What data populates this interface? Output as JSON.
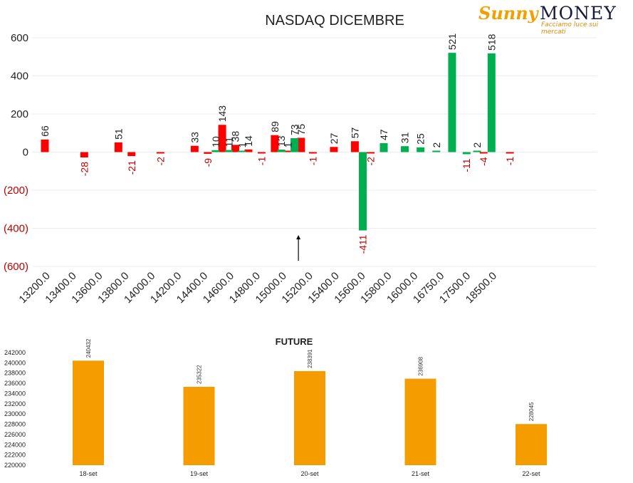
{
  "logo": {
    "brand_part1": "Sunny",
    "brand_part2": "MONEY",
    "tagline": "Facciamo luce sui mercati"
  },
  "colors": {
    "positive": "#00b050",
    "negative": "#ff0000",
    "negative_text": "#c00000",
    "future_bar": "#f59c00"
  },
  "chart_data": [
    {
      "type": "bar",
      "title": "NASDAQ DICEMBRE",
      "y_ticks": [
        "600",
        "400",
        "200",
        "0",
        "(200)",
        "(400)",
        "(600)"
      ],
      "ylim": [
        -600,
        600
      ],
      "categories": [
        "13200.0",
        "13400.0",
        "13600.0",
        "13800.0",
        "14000.0",
        "14200.0",
        "14400.0",
        "14600.0",
        "14800.0",
        "15000.0",
        "15200.0",
        "15400.0",
        "15600.0",
        "15800.0",
        "16000.0",
        "16750.0",
        "17500.0",
        "18500.0"
      ],
      "series": [
        {
          "color": "red",
          "points": [
            {
              "x": 0.0,
              "y": 66
            },
            {
              "x": 1.5,
              "y": -28
            },
            {
              "x": 2.8,
              "y": 51
            },
            {
              "x": 3.3,
              "y": -21
            },
            {
              "x": 4.4,
              "y": -2
            },
            {
              "x": 5.7,
              "y": 33
            },
            {
              "x": 6.2,
              "y": -9
            },
            {
              "x": 6.75,
              "y": 143
            },
            {
              "x": 7.25,
              "y": 38
            },
            {
              "x": 7.75,
              "y": 14
            },
            {
              "x": 8.25,
              "y": -1
            },
            {
              "x": 8.75,
              "y": 89
            },
            {
              "x": 9.25,
              "y": 1
            },
            {
              "x": 9.75,
              "y": 75
            },
            {
              "x": 10.2,
              "y": -1
            },
            {
              "x": 11.0,
              "y": 27
            },
            {
              "x": 11.8,
              "y": 57
            },
            {
              "x": 12.4,
              "y": -2
            },
            {
              "x": 16.7,
              "y": -4
            },
            {
              "x": 17.7,
              "y": -1
            }
          ]
        },
        {
          "color": "green",
          "points": [
            {
              "x": 6.5,
              "y": 10
            },
            {
              "x": 7.0,
              "y": 11
            },
            {
              "x": 7.5,
              "y": 1
            },
            {
              "x": 9.0,
              "y": 13
            },
            {
              "x": 9.5,
              "y": 73
            },
            {
              "x": 12.1,
              "y": -411
            },
            {
              "x": 12.9,
              "y": 47
            },
            {
              "x": 13.7,
              "y": 31
            },
            {
              "x": 14.3,
              "y": 25
            },
            {
              "x": 14.9,
              "y": 2
            },
            {
              "x": 15.5,
              "y": 521
            },
            {
              "x": 16.05,
              "y": -11
            },
            {
              "x": 16.45,
              "y": 2
            },
            {
              "x": 17.0,
              "y": 518
            }
          ]
        }
      ],
      "annotation_arrow_x": 9.65
    },
    {
      "type": "bar",
      "title": "FUTURE",
      "categories": [
        "18-set",
        "19-set",
        "20-set",
        "21-set",
        "22-set"
      ],
      "values": [
        240432,
        235322,
        238391,
        236908,
        228045
      ],
      "ylim": [
        220000,
        242000
      ],
      "y_ticks": [
        "242000",
        "240000",
        "238000",
        "236000",
        "234000",
        "232000",
        "230000",
        "228000",
        "226000",
        "224000",
        "222000",
        "220000"
      ]
    }
  ]
}
